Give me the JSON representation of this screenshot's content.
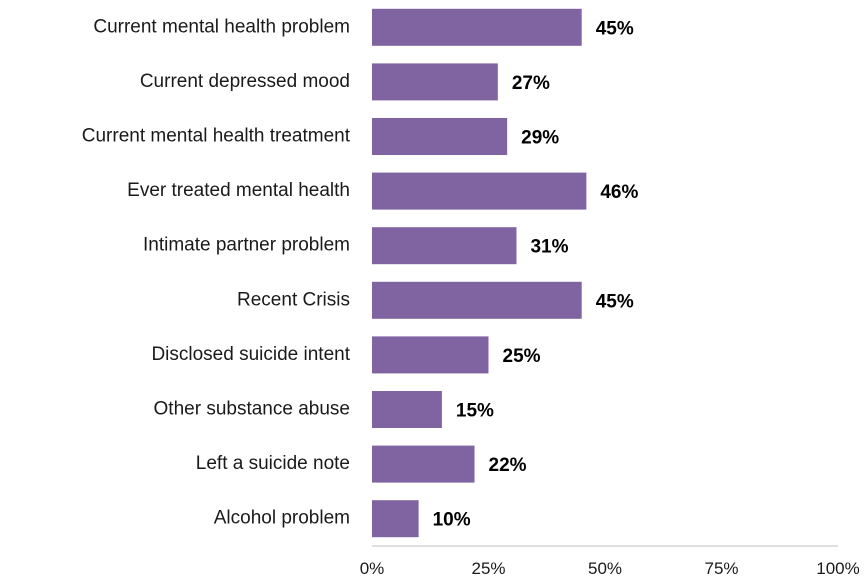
{
  "chart_data": {
    "type": "bar",
    "orientation": "horizontal",
    "categories": [
      "Current mental health problem",
      "Current depressed mood",
      "Current mental health treatment",
      "Ever treated mental health",
      "Intimate partner problem",
      "Recent Crisis",
      "Disclosed suicide intent ",
      "Other substance abuse",
      "Left a suicide note ",
      "Alcohol problem"
    ],
    "values": [
      45,
      27,
      29,
      46,
      31,
      45,
      25,
      15,
      22,
      10
    ],
    "value_labels": [
      "45%",
      "27%",
      "29%",
      "46%",
      "31%",
      "45%",
      "25%",
      "15%",
      "22%",
      "10%"
    ],
    "xlim": [
      0,
      100
    ],
    "xticks": [
      0,
      25,
      50,
      75,
      100
    ],
    "xtick_labels": [
      "0%",
      "25%",
      "50%",
      "75%",
      "100%"
    ],
    "bar_color": "#8064a2",
    "grid": false,
    "legend": "none"
  }
}
